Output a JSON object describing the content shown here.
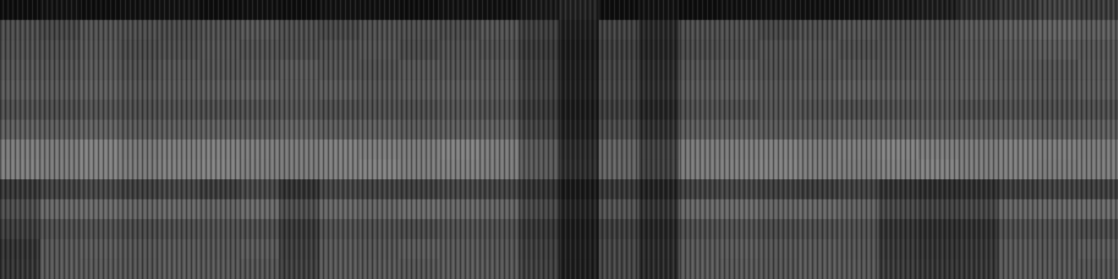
{
  "chart_data": {
    "type": "heatmap",
    "color": "gray",
    "tick_labels": false,
    "color_range": [
      0,
      100
    ],
    "cells": [
      [
        6,
        8,
        6,
        7,
        8,
        6,
        7,
        6,
        8,
        7,
        6,
        8,
        7,
        10,
        14,
        6,
        8,
        6,
        7,
        8,
        7,
        8,
        10,
        12,
        18,
        22,
        26,
        24
      ],
      [
        30,
        28,
        32,
        30,
        29,
        31,
        33,
        30,
        28,
        31,
        30,
        29,
        32,
        24,
        12,
        26,
        16,
        30,
        31,
        28,
        30,
        32,
        30,
        31,
        34,
        36,
        38,
        36
      ],
      [
        31,
        30,
        33,
        29,
        30,
        32,
        31,
        30,
        31,
        32,
        29,
        31,
        30,
        22,
        11,
        24,
        15,
        29,
        30,
        31,
        32,
        30,
        31,
        32,
        33,
        34,
        35,
        33
      ],
      [
        33,
        32,
        34,
        31,
        33,
        32,
        33,
        34,
        32,
        31,
        33,
        32,
        33,
        24,
        12,
        26,
        17,
        32,
        33,
        31,
        32,
        33,
        32,
        33,
        34,
        33,
        32,
        34
      ],
      [
        35,
        34,
        36,
        33,
        34,
        35,
        36,
        34,
        35,
        33,
        34,
        35,
        34,
        25,
        13,
        27,
        18,
        34,
        35,
        33,
        34,
        36,
        35,
        34,
        35,
        34,
        33,
        35
      ],
      [
        31,
        30,
        32,
        30,
        31,
        30,
        31,
        32,
        30,
        31,
        30,
        32,
        31,
        22,
        11,
        24,
        15,
        31,
        30,
        32,
        31,
        30,
        31,
        32,
        30,
        31,
        30,
        31
      ],
      [
        37,
        36,
        38,
        35,
        36,
        37,
        36,
        38,
        36,
        37,
        35,
        36,
        37,
        26,
        13,
        29,
        19,
        36,
        37,
        35,
        36,
        38,
        37,
        36,
        37,
        38,
        36,
        37
      ],
      [
        48,
        47,
        50,
        46,
        48,
        49,
        48,
        47,
        49,
        48,
        47,
        50,
        48,
        34,
        17,
        38,
        25,
        47,
        48,
        49,
        47,
        48,
        50,
        48,
        47,
        49,
        48,
        47
      ],
      [
        49,
        48,
        50,
        47,
        49,
        50,
        48,
        47,
        49,
        50,
        48,
        49,
        48,
        35,
        18,
        39,
        25,
        48,
        49,
        50,
        48,
        47,
        49,
        50,
        48,
        49,
        47,
        48
      ],
      [
        22,
        26,
        28,
        25,
        27,
        24,
        28,
        20,
        27,
        26,
        25,
        27,
        26,
        20,
        10,
        22,
        14,
        26,
        27,
        25,
        24,
        26,
        20,
        18,
        19,
        24,
        26,
        25
      ],
      [
        30,
        40,
        41,
        39,
        40,
        38,
        41,
        30,
        40,
        39,
        41,
        40,
        39,
        28,
        14,
        32,
        20,
        40,
        41,
        39,
        40,
        38,
        28,
        26,
        27,
        39,
        40,
        41
      ],
      [
        24,
        30,
        31,
        29,
        30,
        31,
        30,
        22,
        31,
        30,
        29,
        31,
        30,
        21,
        11,
        24,
        15,
        30,
        31,
        29,
        30,
        31,
        20,
        18,
        19,
        30,
        31,
        29
      ],
      [
        20,
        34,
        35,
        33,
        34,
        33,
        35,
        24,
        34,
        33,
        35,
        34,
        33,
        24,
        12,
        27,
        17,
        34,
        35,
        33,
        34,
        33,
        22,
        20,
        21,
        34,
        33,
        35
      ],
      [
        21,
        35,
        34,
        33,
        35,
        34,
        33,
        25,
        35,
        34,
        33,
        35,
        34,
        25,
        12,
        28,
        17,
        35,
        34,
        33,
        35,
        34,
        23,
        21,
        22,
        35,
        34,
        33
      ]
    ]
  }
}
